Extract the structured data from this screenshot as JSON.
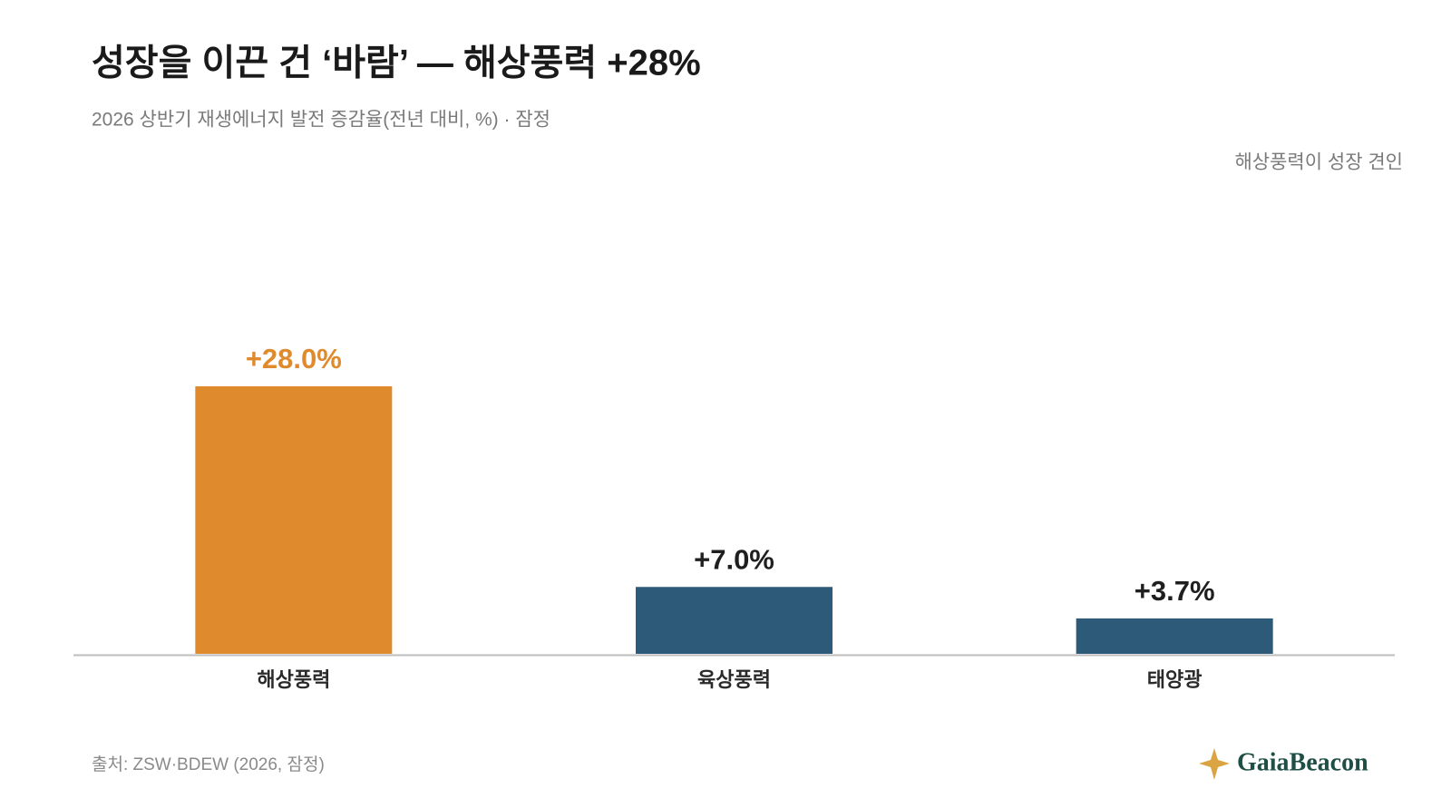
{
  "chart_data": {
    "type": "bar",
    "title": "성장을 이끈 건 ‘바람’ — 해상풍력 +28%",
    "subtitle": "2026 상반기 재생에너지 발전 증감율(전년 대비, %) · 잠정",
    "annotation": "해상풍력이 성장 견인",
    "categories": [
      "해상풍력",
      "육상풍력",
      "태양광"
    ],
    "values": [
      28.0,
      7.0,
      3.7
    ],
    "value_labels": [
      "+28.0%",
      "+7.0%",
      "+3.7%"
    ],
    "colors": [
      "#e08a2e",
      "#2e5a7a",
      "#2e5a7a"
    ],
    "value_label_colors": [
      "#e08a2e",
      "#1f1f1f",
      "#1f1f1f"
    ],
    "source": "출처: ZSW·BDEW (2026, 잠정)",
    "brand": "GaiaBeacon"
  }
}
